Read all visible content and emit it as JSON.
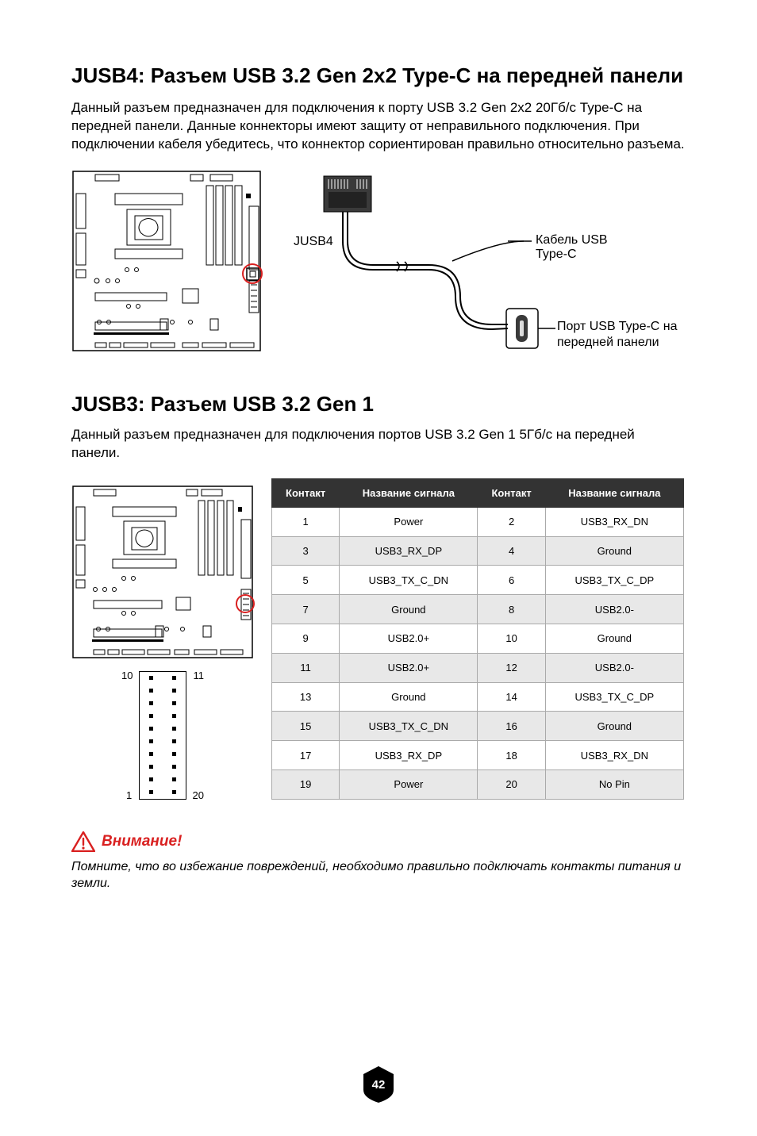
{
  "section1": {
    "heading": "JUSB4: Разъем USB 3.2 Gen 2x2 Type-C на передней панели",
    "body": "Данный разъем предназначен для подключения к порту USB 3.2 Gen 2x2 20Гб/с Type-C на передней панели. Данные коннекторы имеют защиту от неправильного подключения. При подключении кабеля убедитесь, что коннектор сориентирован правильно относительно разъема.",
    "jusb4_label": "JUSB4",
    "cable_label": "Кабель USB Type-C",
    "port_label": "Порт USB Type-C на передней панели"
  },
  "section2": {
    "heading": "JUSB3: Разъем USB 3.2 Gen 1",
    "body": "Данный разъем предназначен для подключения портов USB 3.2 Gen 1 5Гб/с на передней панели.",
    "pin_labels": {
      "tl": "10",
      "tr": "11",
      "bl": "1",
      "br": "20"
    }
  },
  "table": {
    "headers": [
      "Контакт",
      "Название сигнала",
      "Контакт",
      "Название сигнала"
    ],
    "rows": [
      [
        "1",
        "Power",
        "2",
        "USB3_RX_DN"
      ],
      [
        "3",
        "USB3_RX_DP",
        "4",
        "Ground"
      ],
      [
        "5",
        "USB3_TX_C_DN",
        "6",
        "USB3_TX_C_DP"
      ],
      [
        "7",
        "Ground",
        "8",
        "USB2.0-"
      ],
      [
        "9",
        "USB2.0+",
        "10",
        "Ground"
      ],
      [
        "11",
        "USB2.0+",
        "12",
        "USB2.0-"
      ],
      [
        "13",
        "Ground",
        "14",
        "USB3_TX_C_DP"
      ],
      [
        "15",
        "USB3_TX_C_DN",
        "16",
        "Ground"
      ],
      [
        "17",
        "USB3_RX_DP",
        "18",
        "USB3_RX_DN"
      ],
      [
        "19",
        "Power",
        "20",
        "No Pin"
      ]
    ]
  },
  "attention": {
    "title": "Внимание!",
    "body": "Помните, что во избежание повреждений, необходимо правильно подключать контакты питания и земли.",
    "icon_color": "#d92020"
  },
  "page_number": "42",
  "colors": {
    "highlight": "#d92020",
    "table_header_bg": "#333333",
    "table_alt_bg": "#e8e8e8",
    "border": "#000000"
  },
  "pin_rows": 10
}
